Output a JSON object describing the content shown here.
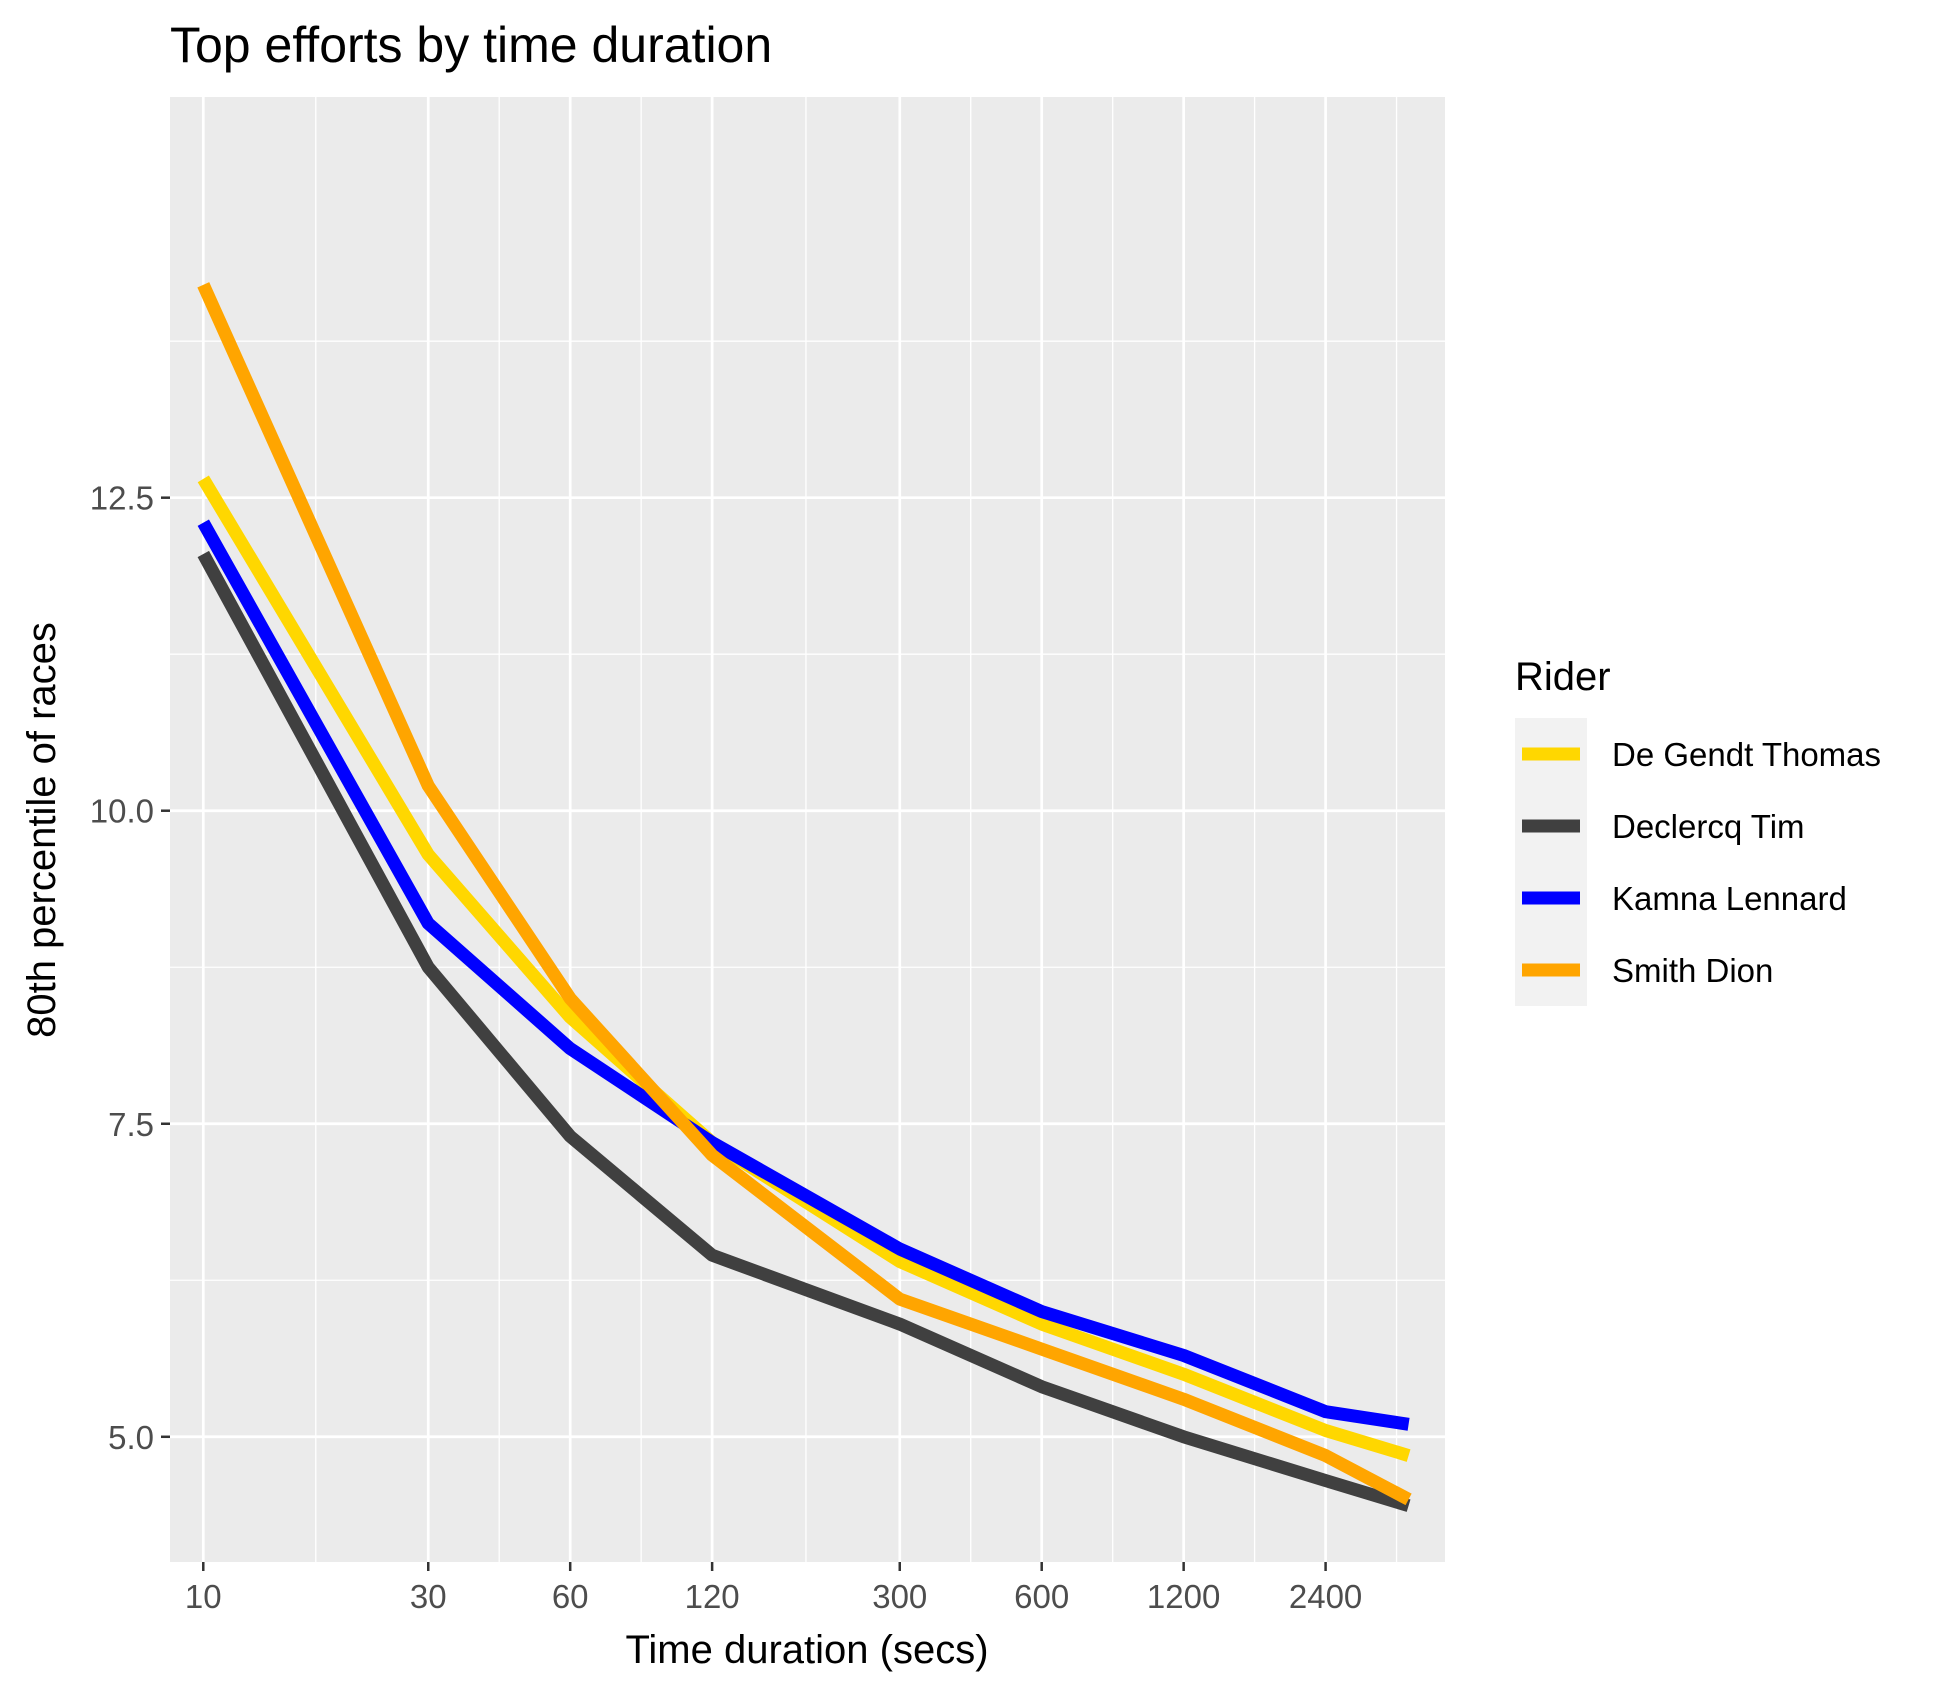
{
  "chart_data": {
    "type": "line",
    "title": "Top efforts by time duration",
    "xlabel": "Time duration (secs)",
    "ylabel": "80th percentile of races",
    "x_scale": "log",
    "x": [
      10,
      30,
      60,
      120,
      300,
      600,
      1200,
      2400,
      3600
    ],
    "x_ticks": [
      10,
      30,
      60,
      120,
      300,
      600,
      1200,
      2400
    ],
    "x_tick_labels": [
      "10",
      "30",
      "60",
      "120",
      "300",
      "600",
      "1200",
      "2400"
    ],
    "xlim": [
      8.5,
      4300
    ],
    "y_ticks": [
      5.0,
      7.5,
      10.0,
      12.5
    ],
    "y_tick_labels": [
      "5.0",
      "7.5",
      "10.0",
      "12.5"
    ],
    "ylim": [
      4.0,
      15.7
    ],
    "grid": true,
    "legend": {
      "title": "Rider",
      "position": "right"
    },
    "series": [
      {
        "name": "De Gendt Thomas",
        "color": "#FFD700",
        "values": [
          12.65,
          9.65,
          8.35,
          7.35,
          6.4,
          5.9,
          5.5,
          5.05,
          4.85
        ]
      },
      {
        "name": "Declercq Tim",
        "color": "#404040",
        "values": [
          12.05,
          8.75,
          7.4,
          6.45,
          5.9,
          5.4,
          5.0,
          4.65,
          4.45
        ]
      },
      {
        "name": "Kamna Lennard",
        "color": "#0000FF",
        "values": [
          12.3,
          9.1,
          8.1,
          7.35,
          6.5,
          6.0,
          5.65,
          5.2,
          5.1
        ]
      },
      {
        "name": "Smith Dion",
        "color": "#FFA500",
        "values": [
          14.2,
          10.2,
          8.5,
          7.25,
          6.1,
          5.7,
          5.3,
          4.85,
          4.5
        ]
      }
    ]
  }
}
